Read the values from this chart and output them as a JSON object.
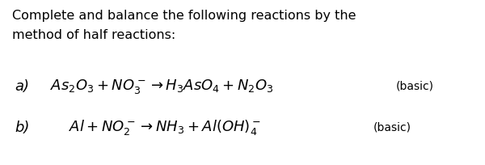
{
  "bg_color": "#ffffff",
  "text_color": "#000000",
  "header_line1": "Complete and balance the following reactions by the",
  "header_line2": "method of half reactions:",
  "label_a": "a)",
  "label_b": "b)",
  "reaction_a": "$As_2O_3 + NO_3^- \\rightarrow H_3AsO_4 + N_2O_3$",
  "basic_a": "(basic)",
  "reaction_b": "$Al + NO_2^- \\rightarrow NH_3 + Al(OH)_4^-$",
  "basic_b": "(basic)",
  "header_fontsize": 11.5,
  "reaction_fontsize": 13,
  "label_fontsize": 13,
  "basic_fontsize": 10
}
